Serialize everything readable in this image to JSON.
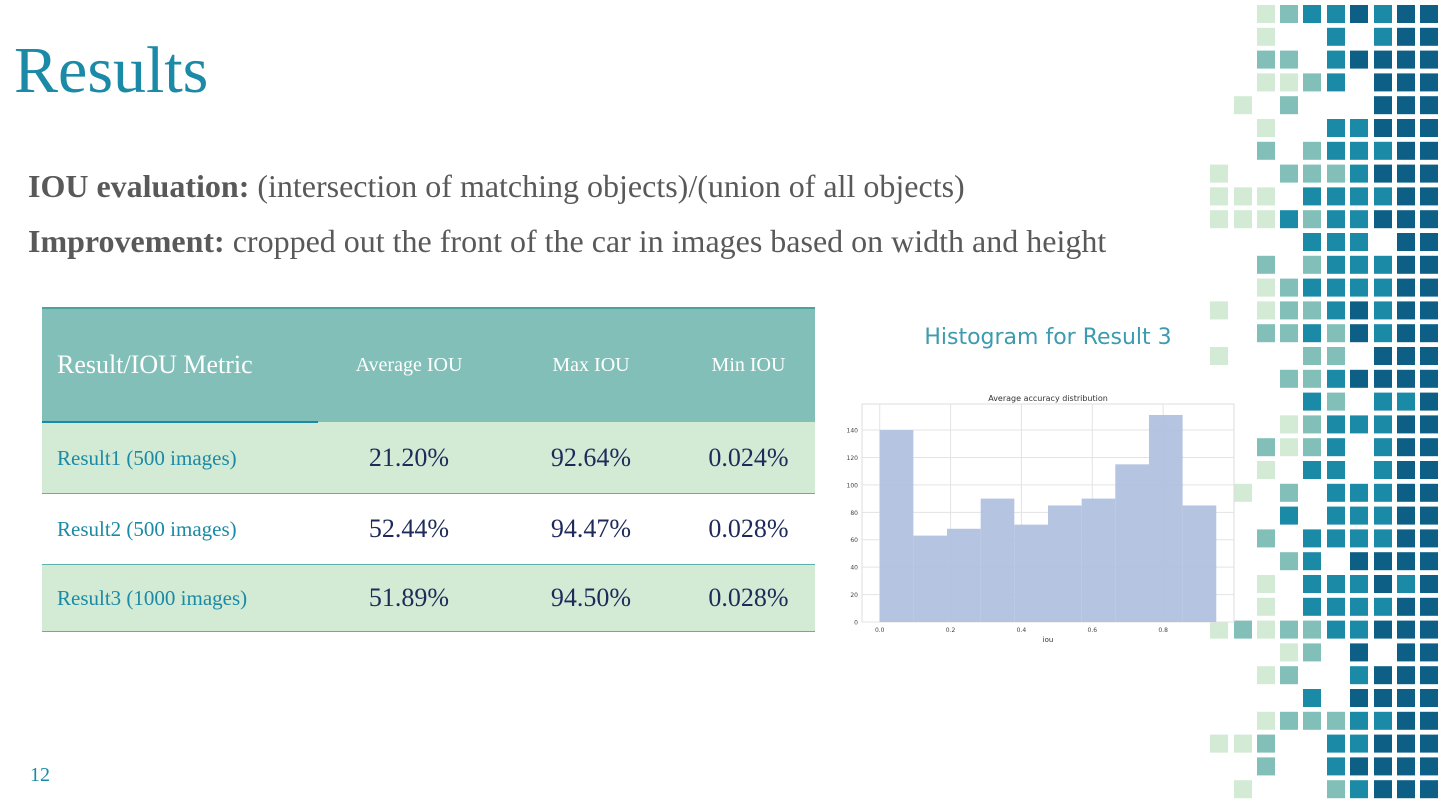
{
  "title": "Results",
  "bullets": [
    {
      "label": "IOU evaluation:",
      "text": "(intersection of matching objects)/(union of all objects)"
    },
    {
      "label": "Improvement:",
      "text": "cropped out the front of the car in images based on width and height"
    }
  ],
  "table": {
    "header": [
      "Result/IOU Metric",
      "Average IOU",
      "Max IOU",
      "Min IOU"
    ],
    "rows": [
      [
        "Result1 (500 images)",
        "21.20%",
        "92.64%",
        "0.024%"
      ],
      [
        "Result2 (500 images)",
        "52.44%",
        "94.47%",
        "0.028%"
      ],
      [
        "Result3 (1000 images)",
        "51.89%",
        "94.50%",
        "0.028%"
      ]
    ]
  },
  "histogram_heading": "Histogram for Result 3",
  "page_number": "12",
  "chart_data": {
    "type": "histogram",
    "title": "Average accuracy distribution",
    "x_label": "iou",
    "bins": [
      0,
      0.095,
      0.19,
      0.285,
      0.38,
      0.475,
      0.57,
      0.665,
      0.76,
      0.855,
      0.95
    ],
    "values": [
      140,
      63,
      68,
      90,
      71,
      85,
      90,
      115,
      151,
      85
    ],
    "color": "#b1c1df",
    "xlim": [
      -0.05,
      1.0
    ],
    "ylim": [
      0,
      159
    ],
    "xticks": [
      {
        "value": 0,
        "label": "0.0"
      },
      0.2,
      0.4,
      0.6,
      0.8
    ],
    "yticks": [
      0,
      20,
      40,
      60,
      80,
      100,
      120,
      140
    ],
    "grid": true
  }
}
